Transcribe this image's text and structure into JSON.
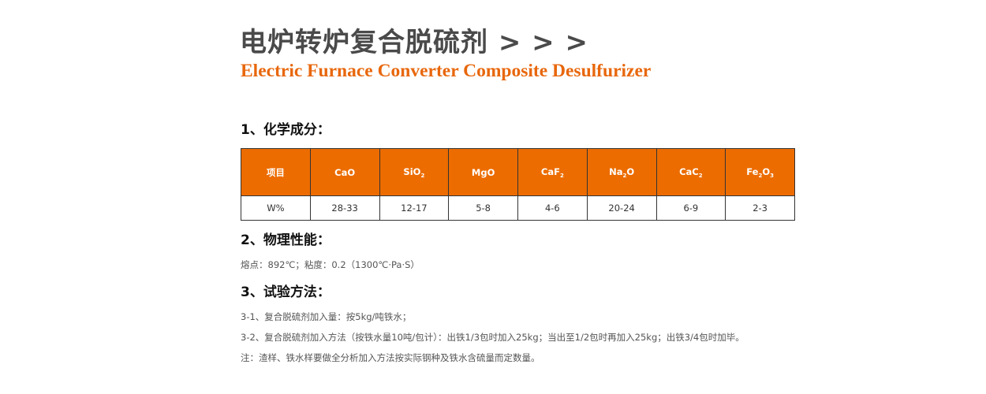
{
  "header": {
    "title": "电炉转炉复合脱硫剂 > > >",
    "subtitle": "Electric Furnace Converter Composite Desulfurizer"
  },
  "section1": {
    "heading": "1、化学成分：",
    "table": {
      "headers": [
        {
          "base": "项目",
          "sub": "",
          "tail": ""
        },
        {
          "base": "CaO",
          "sub": "",
          "tail": ""
        },
        {
          "base": "SiO",
          "sub": "2",
          "tail": ""
        },
        {
          "base": "MgO",
          "sub": "",
          "tail": ""
        },
        {
          "base": "CaF",
          "sub": "2",
          "tail": ""
        },
        {
          "base": "Na",
          "sub": "2",
          "tail": "O"
        },
        {
          "base": "CaC",
          "sub": "2",
          "tail": ""
        },
        {
          "base": "Fe",
          "sub": "2",
          "tail": "O",
          "sub2": "3"
        }
      ],
      "row": [
        "W%",
        "28-33",
        "12-17",
        "5-8",
        "4-6",
        "20-24",
        "6-9",
        "2-3"
      ]
    }
  },
  "section2": {
    "heading": "2、物理性能：",
    "text": "熔点：892℃；粘度：0.2（1300℃·Pa·S）"
  },
  "section3": {
    "heading": "3、试验方法：",
    "lines": [
      "3-1、复合脱硫剂加入量：按5kg/吨铁水；",
      "3-2、复合脱硫剂加入方法（按铁水量10吨/包计）：出铁1/3包时加入25kg；当出至1/2包时再加入25kg；出铁3/4包时加毕。",
      "注：渣样、铁水样要做全分析加入方法按实际钢种及铁水含硫量而定数量。"
    ]
  },
  "colors": {
    "accent": "#ec6c00",
    "title": "#4a4a4a"
  }
}
